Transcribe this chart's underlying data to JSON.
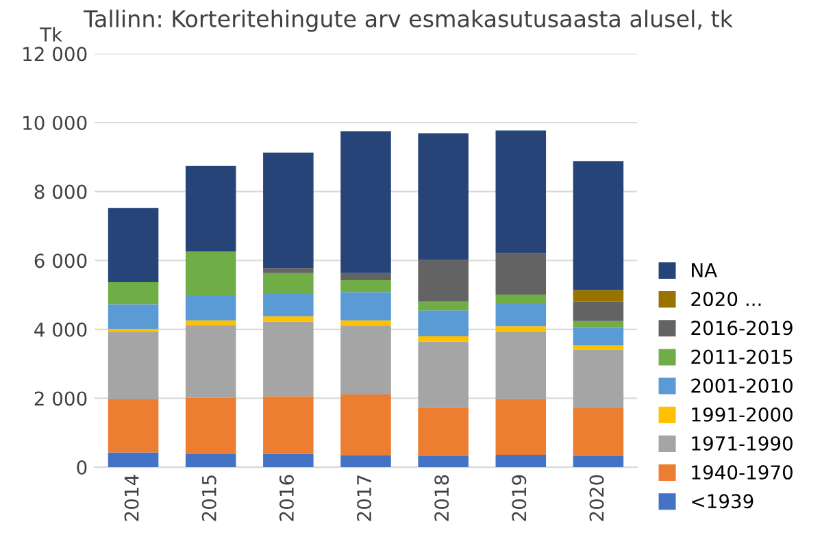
{
  "chart_data": {
    "type": "bar",
    "stacked": true,
    "title": "Tallinn: Korteritehingute arv esmakasutusaasta alusel, tk",
    "ylabel": "Tk",
    "categories": [
      "2014",
      "2015",
      "2016",
      "2017",
      "2018",
      "2019",
      "2020"
    ],
    "series": [
      {
        "name": "<1939",
        "color": "#4472c4",
        "values": [
          430,
          380,
          390,
          340,
          320,
          360,
          320
        ]
      },
      {
        "name": "1940-1970",
        "color": "#ed7d31",
        "values": [
          1540,
          1640,
          1670,
          1770,
          1420,
          1620,
          1390
        ]
      },
      {
        "name": "1971-1990",
        "color": "#a5a5a5",
        "values": [
          1950,
          2100,
          2160,
          2000,
          1910,
          1950,
          1700
        ]
      },
      {
        "name": "1991-2000",
        "color": "#ffc000",
        "values": [
          90,
          140,
          160,
          150,
          150,
          160,
          120
        ]
      },
      {
        "name": "2001-2010",
        "color": "#5b9bd5",
        "values": [
          720,
          710,
          670,
          820,
          750,
          660,
          520
        ]
      },
      {
        "name": "2011-2015",
        "color": "#70ad47",
        "values": [
          640,
          1290,
          580,
          350,
          250,
          260,
          190
        ]
      },
      {
        "name": "2016-2019",
        "color": "#636363",
        "values": [
          null,
          null,
          150,
          200,
          1220,
          1210,
          560
        ]
      },
      {
        "name": "2020 ...",
        "color": "#997300",
        "values": [
          null,
          null,
          null,
          null,
          null,
          null,
          340
        ]
      },
      {
        "name": "NA",
        "color": "#264478",
        "values": [
          2150,
          2490,
          3350,
          4120,
          3670,
          3550,
          3740
        ]
      }
    ],
    "ylim": [
      0,
      12000
    ],
    "yticks": [
      0,
      {
        "value": 2000,
        "label": "2 000"
      },
      {
        "value": 4000,
        "label": "4 000"
      },
      {
        "value": 6000,
        "label": "6 000"
      },
      {
        "value": 8000,
        "label": "8 000"
      },
      {
        "value": 10000,
        "label": "10 000"
      },
      {
        "value": 12000,
        "label": "12 000"
      }
    ],
    "grid": "y",
    "legend": "right"
  }
}
